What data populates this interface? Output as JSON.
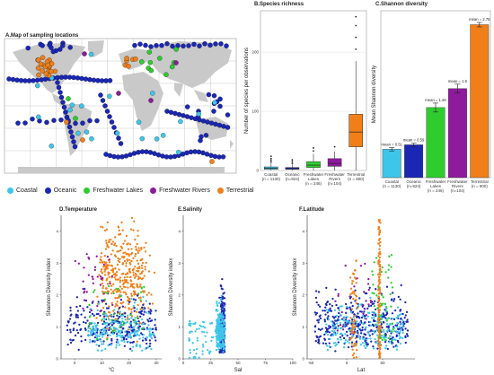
{
  "colors": {
    "coastal": "#3ec6ea",
    "oceanic": "#1a27b5",
    "freshwater_lakes": "#2ecc2e",
    "freshwater_rivers": "#8e1a9c",
    "terrestrial": "#f07f1a"
  },
  "panels": {
    "A": "A.Map of sampling locations",
    "B": "B.Species richness",
    "C": "C.Shannon diversity",
    "D": "D.Temperature",
    "E": "E.Salinity",
    "F": "F.Latitude"
  },
  "legend": [
    {
      "label": "Coastal",
      "color": "#3ec6ea"
    },
    {
      "label": "Oceanic",
      "color": "#1a27b5"
    },
    {
      "label": "Freshwater Lakes",
      "color": "#2ecc2e"
    },
    {
      "label": "Freshwater Rivers",
      "color": "#8e1a9c"
    },
    {
      "label": "Terrestrial",
      "color": "#f07f1a"
    }
  ],
  "chart_data": [
    {
      "id": "B",
      "type": "box",
      "title": "B.Species richness",
      "ylabel": "Number of species per observations",
      "ylim": [
        0,
        270
      ],
      "yticks": [
        0,
        100,
        200
      ],
      "categories": [
        "Coastal\n(n = 1130)",
        "Oceanic\n(n=924)",
        "Freshwater\nLakes\n(n = 246)",
        "Freshwater\nRivers\n(n=104)",
        "Terrestrial\n(n = 800)"
      ],
      "boxes": [
        {
          "min": 0,
          "q1": 2,
          "median": 4,
          "q3": 6,
          "max": 12,
          "outliers": [
            14,
            17,
            20,
            24
          ]
        },
        {
          "min": 0,
          "q1": 2,
          "median": 3,
          "q3": 5,
          "max": 10,
          "outliers": [
            12,
            15,
            18
          ]
        },
        {
          "min": 0,
          "q1": 5,
          "median": 9,
          "q3": 15,
          "max": 28,
          "outliers": [
            33,
            38
          ]
        },
        {
          "min": 0,
          "q1": 7,
          "median": 12,
          "q3": 20,
          "max": 32,
          "outliers": [
            40
          ]
        },
        {
          "min": 0,
          "q1": 40,
          "median": 65,
          "q3": 95,
          "max": 185,
          "outliers": [
            205,
            225,
            245,
            260
          ]
        }
      ]
    },
    {
      "id": "C",
      "type": "bar",
      "title": "C.Shannon diversity",
      "ylabel": "Mean Shannon diversity",
      "ylim": [
        0,
        3
      ],
      "categories": [
        "Coastal\n(n = 1130)",
        "Oceanic\n(n=924)",
        "Freshwater\nLakes\n(n = 246)",
        "Freshwater\nRivers\n(n=104)",
        "Terrestrial\n(n = 800)"
      ],
      "values": [
        0.51,
        0.59,
        1.26,
        1.6,
        2.75
      ],
      "errors": [
        0.03,
        0.03,
        0.08,
        0.08,
        0.04
      ],
      "labels": [
        "mean = 0.51",
        "mean = 0.59",
        "mean = 1.26",
        "mean = 1.6",
        "mean = 2.75"
      ]
    },
    {
      "id": "D",
      "type": "scatter",
      "title": "D.Temperature",
      "xlabel": "°C",
      "ylabel": "Shannon Diversity index",
      "xlim": [
        -5,
        32
      ],
      "ylim": [
        0,
        4.5
      ],
      "xticks": [
        0,
        10,
        20,
        30
      ],
      "yticks": [
        0,
        1,
        2,
        3,
        4
      ]
    },
    {
      "id": "E",
      "type": "scatter",
      "title": "E.Salinity",
      "xlabel": "Sal",
      "ylabel": "Shannon Diversity index",
      "xlim": [
        0,
        100
      ],
      "ylim": [
        0,
        4.5
      ],
      "xticks": [
        0,
        25,
        50,
        75,
        100
      ],
      "yticks": [
        0,
        1,
        2,
        3,
        4
      ]
    },
    {
      "id": "F",
      "type": "scatter",
      "title": "F.Latitude",
      "xlabel": "Lat",
      "ylabel": "Shannon Diversity index",
      "xlim": [
        -55,
        95
      ],
      "ylim": [
        0,
        4.5
      ],
      "xticks": [
        -50,
        0,
        50
      ],
      "xtick_labels": [
        "-50",
        "0",
        "50"
      ],
      "yticks": [
        0,
        1,
        2,
        3,
        4
      ]
    }
  ]
}
